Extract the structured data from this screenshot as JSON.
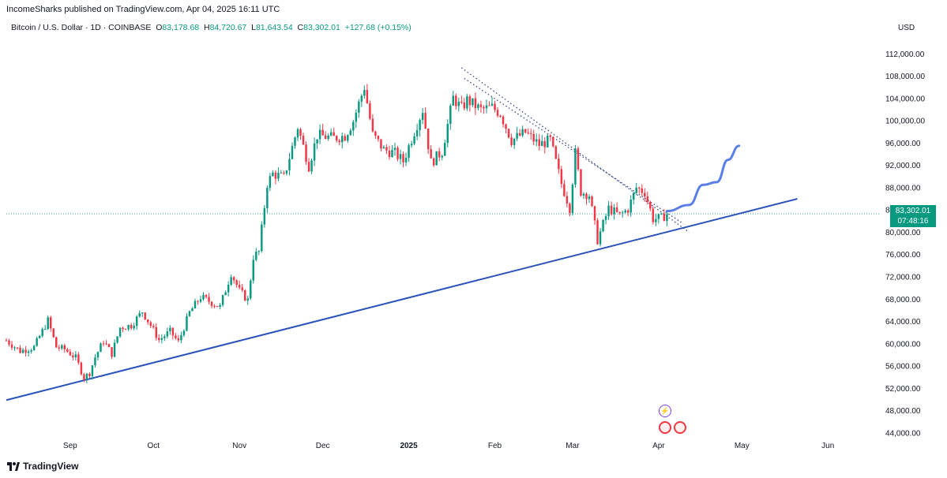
{
  "header": {
    "published_by": "IncomeSharks published on TradingView.com, Apr 04, 2025 16:11 UTC"
  },
  "legend": {
    "symbol": "Bitcoin / U.S. Dollar · 1D · COINBASE",
    "open_label": "O",
    "open": "83,178.68",
    "high_label": "H",
    "high": "84,720.67",
    "low_label": "L",
    "low": "81,643.54",
    "close_label": "C",
    "close": "83,302.01",
    "change": "+127.68 (+0.15%)"
  },
  "axis": {
    "currency": "USD"
  },
  "price_badge": {
    "price": "83,302.01",
    "countdown": "07:48:16"
  },
  "footer": {
    "brand": "TradingView"
  },
  "colors": {
    "up": "#089981",
    "down": "#f23645",
    "trendline": "#2a52be",
    "projection": "#5b7fe8",
    "dotted": "#3a4a8a"
  },
  "chart_data": {
    "type": "candlestick",
    "title": "",
    "xlabel": "",
    "ylabel": "",
    "ylim": [
      43000,
      116000
    ],
    "y_ticks": [
      44000,
      48000,
      52000,
      56000,
      60000,
      64000,
      68000,
      72000,
      76000,
      80000,
      84000,
      88000,
      92000,
      96000,
      100000,
      104000,
      108000,
      112000
    ],
    "y_tick_labels": [
      "44,000.00",
      "48,000.00",
      "52,000.00",
      "56,000.00",
      "60,000.00",
      "64,000.00",
      "68,000.00",
      "72,000.00",
      "76,000.00",
      "80,000.00",
      "84,000.00",
      "88,000.00",
      "92,000.00",
      "96,000.00",
      "100,000.00",
      "104,000.00",
      "108,000.00",
      "112,000.00"
    ],
    "x_tick_labels": [
      {
        "label": "Sep",
        "date": "2024-09-01",
        "bold": false
      },
      {
        "label": "Oct",
        "date": "2024-10-01",
        "bold": false
      },
      {
        "label": "Nov",
        "date": "2024-11-01",
        "bold": false
      },
      {
        "label": "Dec",
        "date": "2024-12-01",
        "bold": false
      },
      {
        "label": "2025",
        "date": "2025-01-01",
        "bold": true
      },
      {
        "label": "Feb",
        "date": "2025-02-01",
        "bold": false
      },
      {
        "label": "Mar",
        "date": "2025-03-01",
        "bold": false
      },
      {
        "label": "Apr",
        "date": "2025-04-01",
        "bold": false
      },
      {
        "label": "May",
        "date": "2025-05-01",
        "bold": false
      },
      {
        "label": "Jun",
        "date": "2025-06-01",
        "bold": false
      }
    ],
    "x_range": [
      "2024-08-09",
      "2025-06-20"
    ],
    "close_series": {
      "name": "BTCUSD",
      "points": [
        [
          "2024-08-09",
          60600
        ],
        [
          "2024-08-14",
          58700
        ],
        [
          "2024-08-19",
          59400
        ],
        [
          "2024-08-24",
          64200
        ],
        [
          "2024-08-27",
          59400
        ],
        [
          "2024-08-30",
          59000
        ],
        [
          "2024-09-03",
          57500
        ],
        [
          "2024-09-06",
          53900
        ],
        [
          "2024-09-08",
          54800
        ],
        [
          "2024-09-10",
          57600
        ],
        [
          "2024-09-13",
          60500
        ],
        [
          "2024-09-16",
          58200
        ],
        [
          "2024-09-19",
          62900
        ],
        [
          "2024-09-23",
          63300
        ],
        [
          "2024-09-27",
          65800
        ],
        [
          "2024-09-30",
          63300
        ],
        [
          "2024-10-03",
          60700
        ],
        [
          "2024-10-07",
          62200
        ],
        [
          "2024-10-10",
          60300
        ],
        [
          "2024-10-14",
          65600
        ],
        [
          "2024-10-18",
          68400
        ],
        [
          "2024-10-22",
          67400
        ],
        [
          "2024-10-25",
          66600
        ],
        [
          "2024-10-29",
          72700
        ],
        [
          "2024-11-01",
          69500
        ],
        [
          "2024-11-04",
          67800
        ],
        [
          "2024-11-06",
          75600
        ],
        [
          "2024-11-08",
          76500
        ],
        [
          "2024-11-11",
          88700
        ],
        [
          "2024-11-13",
          90500
        ],
        [
          "2024-11-17",
          89800
        ],
        [
          "2024-11-22",
          98900
        ],
        [
          "2024-11-26",
          91900
        ],
        [
          "2024-11-29",
          97400
        ],
        [
          "2024-12-05",
          96900
        ],
        [
          "2024-12-09",
          97300
        ],
        [
          "2024-12-12",
          100000
        ],
        [
          "2024-12-16",
          106100
        ],
        [
          "2024-12-19",
          97500
        ],
        [
          "2024-12-23",
          94800
        ],
        [
          "2024-12-27",
          94200
        ],
        [
          "2024-12-30",
          92700
        ],
        [
          "2025-01-03",
          98100
        ],
        [
          "2025-01-06",
          102000
        ],
        [
          "2025-01-09",
          92500
        ],
        [
          "2025-01-13",
          94500
        ],
        [
          "2025-01-17",
          104100
        ],
        [
          "2025-01-20",
          102200
        ],
        [
          "2025-01-22",
          103700
        ],
        [
          "2025-01-27",
          102000
        ],
        [
          "2025-01-31",
          102400
        ],
        [
          "2025-02-03",
          101300
        ],
        [
          "2025-02-07",
          96500
        ],
        [
          "2025-02-12",
          97900
        ],
        [
          "2025-02-17",
          95700
        ],
        [
          "2025-02-21",
          96500
        ],
        [
          "2025-02-25",
          88700
        ],
        [
          "2025-02-28",
          84400
        ],
        [
          "2025-03-02",
          94200
        ],
        [
          "2025-03-04",
          87300
        ],
        [
          "2025-03-07",
          86700
        ],
        [
          "2025-03-10",
          78600
        ],
        [
          "2025-03-14",
          84300
        ],
        [
          "2025-03-18",
          83000
        ],
        [
          "2025-03-21",
          84200
        ],
        [
          "2025-03-24",
          88000
        ],
        [
          "2025-03-27",
          87200
        ],
        [
          "2025-03-30",
          82400
        ],
        [
          "2025-04-02",
          82500
        ],
        [
          "2025-04-04",
          83302
        ]
      ]
    },
    "drawings": [
      {
        "kind": "trendline",
        "points": [
          [
            "2024-08-09",
            49900
          ],
          [
            "2025-05-21",
            86000
          ]
        ]
      },
      {
        "kind": "dotted",
        "points": [
          [
            "2025-01-20",
            109500
          ],
          [
            "2025-04-12",
            80000
          ]
        ]
      },
      {
        "kind": "dotted",
        "points": [
          [
            "2025-01-21",
            107600
          ],
          [
            "2025-04-10",
            81500
          ]
        ]
      },
      {
        "kind": "projection",
        "points": [
          [
            "2025-04-04",
            83800
          ],
          [
            "2025-04-12",
            84900
          ],
          [
            "2025-04-17",
            88500
          ],
          [
            "2025-04-22",
            89000
          ],
          [
            "2025-04-26",
            93000
          ],
          [
            "2025-04-30",
            95500
          ]
        ]
      }
    ],
    "price_line": 83302,
    "grid": false
  }
}
